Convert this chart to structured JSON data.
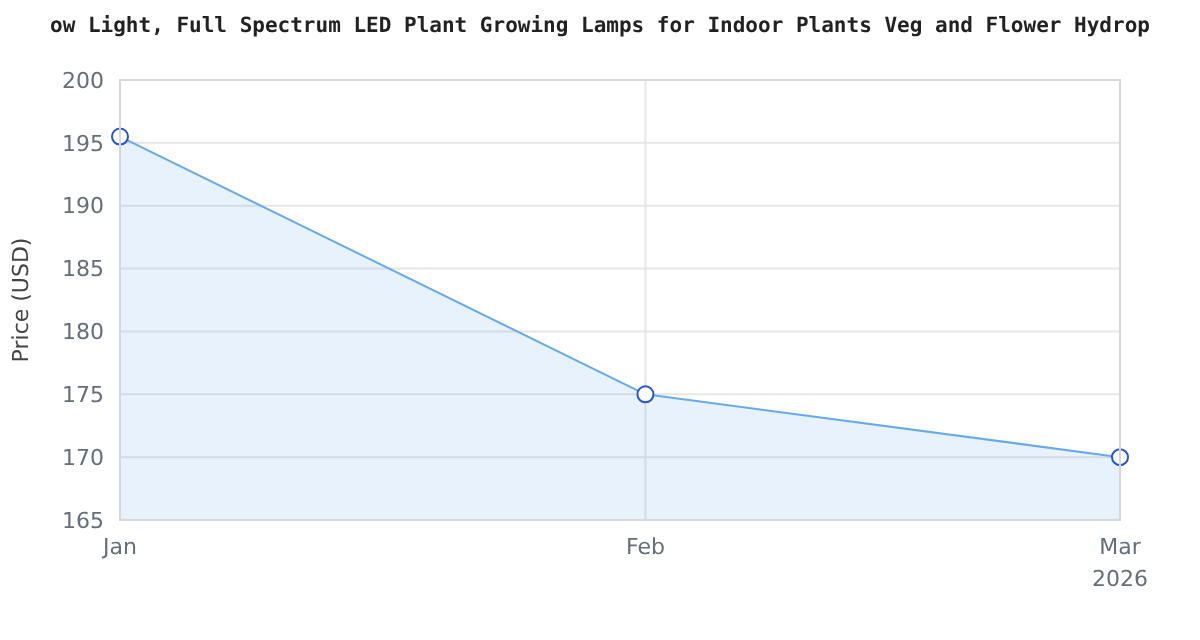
{
  "chart_data": {
    "type": "area",
    "title": "ow Light, Full Spectrum LED Plant Growing Lamps for Indoor Plants Veg and Flower Hydrop",
    "ylabel": "Price (USD)",
    "x": [
      "2026-01-01",
      "2026-02-01",
      "2026-03-01"
    ],
    "series": [
      {
        "color": "#66aaee",
        "values": [
          195.5,
          175,
          170
        ]
      }
    ],
    "xlim": [
      "2026-01-01",
      "2026-03-01"
    ],
    "xticks": [
      {
        "value": "2026-01-01",
        "label": "Jan"
      },
      {
        "value": "2026-02-01",
        "label": "Feb"
      },
      {
        "value": "2026-03-01",
        "label": "Mar\n2026"
      }
    ],
    "ylim": [
      165,
      200
    ],
    "yticks": [
      165,
      170,
      175,
      180,
      185,
      190,
      195,
      200
    ],
    "grid": true,
    "marker": "circle"
  }
}
